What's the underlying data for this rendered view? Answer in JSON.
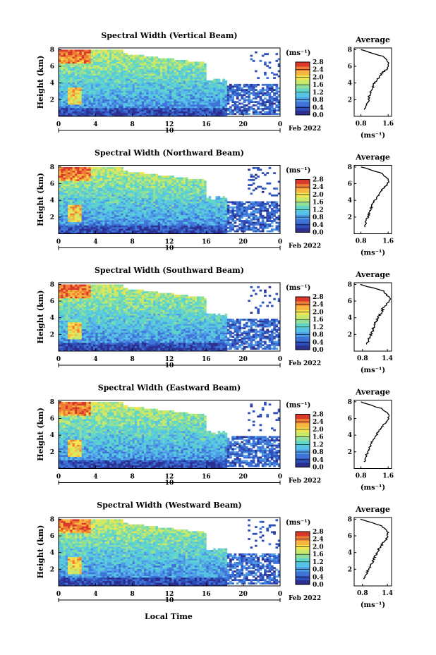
{
  "figure": {
    "xlabel": "Local Time",
    "ylabel": "Height (km)",
    "date_label": "Feb 2022",
    "day_label": "10",
    "units": "(ms⁻¹)",
    "avg_title": "Average",
    "xtick_labels": [
      "0",
      "4",
      "8",
      "12",
      "16",
      "20",
      "0"
    ],
    "ytick_labels": [
      "2",
      "4",
      "6",
      "8"
    ],
    "colorbar_ticks": [
      "0.0",
      "0.4",
      "0.8",
      "1.2",
      "1.6",
      "2.0",
      "2.4",
      "2.8"
    ]
  },
  "colormap": [
    "#2d2f8f",
    "#2f4fb8",
    "#3f73d8",
    "#4f9ce6",
    "#56c2e6",
    "#5fd6c8",
    "#8fdf9a",
    "#c9e96a",
    "#f2e44f",
    "#f6b640",
    "#ef7d34",
    "#d9382b"
  ],
  "chart_data": [
    {
      "type": "heatmap",
      "title": "Spectral Width (Vertical Beam)",
      "xlabel": "",
      "ylabel": "Height (km)",
      "xlim": [
        0,
        24
      ],
      "ylim": [
        0,
        8.2
      ],
      "colorbar_range": [
        0.0,
        2.8
      ],
      "profile": {
        "title": "Average",
        "xticks": [
          "0.8",
          "1.6"
        ],
        "xlim": [
          0.6,
          1.7
        ],
        "x": [
          0.9,
          0.98,
          1.02,
          1.05,
          1.1,
          1.15,
          1.2,
          1.32,
          1.42,
          1.6,
          1.62,
          1.45,
          0.8
        ],
        "y": [
          0.8,
          1.5,
          2.0,
          2.5,
          3.0,
          3.5,
          4.0,
          4.6,
          5.2,
          5.8,
          6.4,
          7.2,
          8.0
        ]
      }
    },
    {
      "type": "heatmap",
      "title": "Spectral Width (Northward Beam)",
      "xlabel": "",
      "ylabel": "Height (km)",
      "xlim": [
        0,
        24
      ],
      "ylim": [
        0,
        8.2
      ],
      "colorbar_range": [
        0.0,
        2.8
      ],
      "profile": {
        "title": "Average",
        "xticks": [
          "0.8",
          "1.6"
        ],
        "xlim": [
          0.6,
          1.7
        ],
        "x": [
          0.9,
          0.95,
          1.0,
          1.05,
          1.1,
          1.12,
          1.2,
          1.3,
          1.4,
          1.55,
          1.62,
          1.45,
          0.8
        ],
        "y": [
          0.8,
          1.5,
          2.0,
          2.5,
          3.0,
          3.5,
          4.0,
          4.6,
          5.2,
          5.8,
          6.4,
          7.2,
          8.0
        ]
      }
    },
    {
      "type": "heatmap",
      "title": "Spectral Width (Southward Beam)",
      "xlabel": "",
      "ylabel": "Height (km)",
      "xlim": [
        0,
        24
      ],
      "ylim": [
        0,
        8.2
      ],
      "colorbar_range": [
        0.0,
        2.8
      ],
      "profile": {
        "title": "Average",
        "xticks": [
          "0.8",
          "1.4"
        ],
        "xlim": [
          0.6,
          1.5
        ],
        "x": [
          0.9,
          0.95,
          1.0,
          1.05,
          1.08,
          1.12,
          1.18,
          1.25,
          1.3,
          1.42,
          1.45,
          1.3,
          0.75
        ],
        "y": [
          0.8,
          1.5,
          2.0,
          2.5,
          3.0,
          3.5,
          4.0,
          4.6,
          5.2,
          5.8,
          6.4,
          7.2,
          8.0
        ]
      }
    },
    {
      "type": "heatmap",
      "title": "Spectral Width (Eastward Beam)",
      "xlabel": "",
      "ylabel": "Height (km)",
      "xlim": [
        0,
        24
      ],
      "ylim": [
        0,
        8.2
      ],
      "colorbar_range": [
        0.0,
        2.8
      ],
      "profile": {
        "title": "Average",
        "xticks": [
          "0.8",
          "1.6"
        ],
        "xlim": [
          0.6,
          1.7
        ],
        "x": [
          0.9,
          0.95,
          1.0,
          1.05,
          1.1,
          1.18,
          1.25,
          1.35,
          1.45,
          1.58,
          1.65,
          1.4,
          0.8
        ],
        "y": [
          0.8,
          1.5,
          2.0,
          2.5,
          3.0,
          3.5,
          4.0,
          4.6,
          5.2,
          5.8,
          6.4,
          7.2,
          8.0
        ]
      }
    },
    {
      "type": "heatmap",
      "title": "Spectral Width (Westward Beam)",
      "xlabel": "Local Time",
      "ylabel": "Height (km)",
      "xlim": [
        0,
        24
      ],
      "ylim": [
        0,
        8.2
      ],
      "colorbar_range": [
        0.0,
        2.8
      ],
      "profile": {
        "title": "Average",
        "xticks": [
          "0.8",
          "1.4"
        ],
        "xlim": [
          0.6,
          1.5
        ],
        "x": [
          0.85,
          0.9,
          0.95,
          1.0,
          1.05,
          1.1,
          1.15,
          1.22,
          1.3,
          1.4,
          1.42,
          1.25,
          0.75
        ],
        "y": [
          0.8,
          1.5,
          2.0,
          2.5,
          3.0,
          3.5,
          4.0,
          4.6,
          5.2,
          5.8,
          6.4,
          7.2,
          8.0
        ]
      }
    }
  ]
}
